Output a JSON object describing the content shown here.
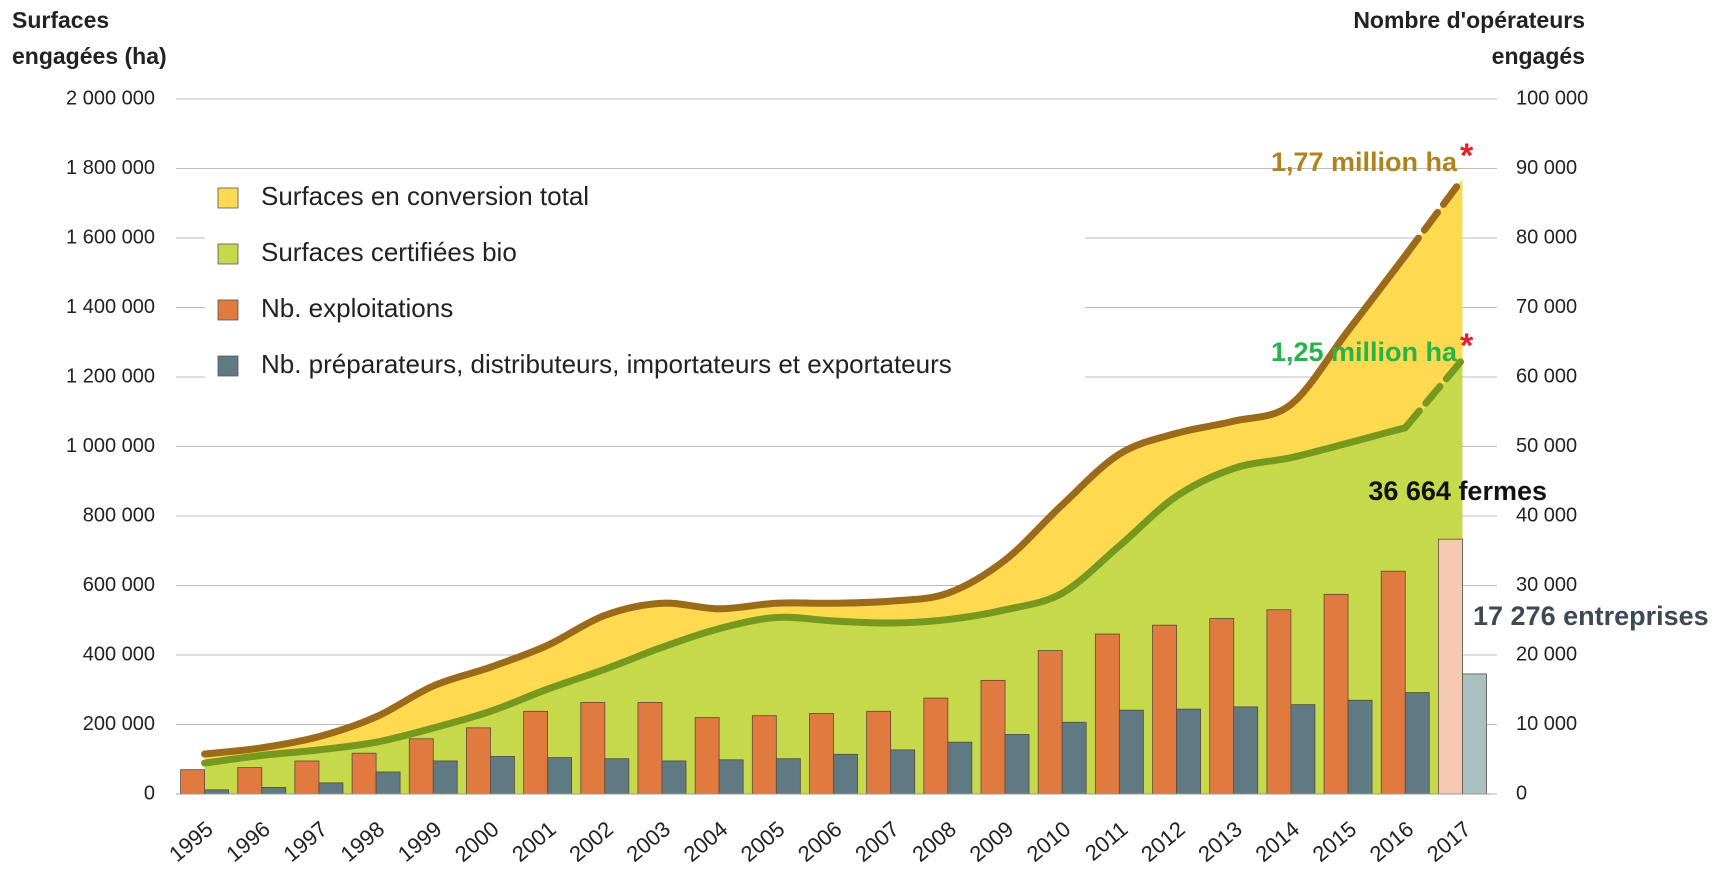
{
  "chart_data": {
    "type": "combo",
    "ylabel": [
      "Surfaces",
      "engagées (ha)"
    ],
    "y2label": [
      "Nombre d'opérateurs",
      "engagés"
    ],
    "categories": [
      "1995",
      "1996",
      "1997",
      "1998",
      "1999",
      "2000",
      "2001",
      "2002",
      "2003",
      "2004",
      "2005",
      "2006",
      "2007",
      "2008",
      "2009",
      "2010",
      "2011",
      "2012",
      "2013",
      "2014",
      "2015",
      "2016",
      "2017"
    ],
    "series": [
      {
        "name": "Surfaces en conversion total",
        "type": "area",
        "color": "#ffd94f",
        "line_color": "#9c6b1a",
        "values": [
          115000,
          133000,
          165000,
          222000,
          311000,
          365000,
          428000,
          514000,
          549000,
          533000,
          549000,
          549000,
          555000,
          578000,
          673000,
          832000,
          978000,
          1038000,
          1073000,
          1121000,
          1333000,
          1549000,
          1770000
        ]
      },
      {
        "name": "Surfaces certifiées bio",
        "type": "area",
        "color": "#c5d94a",
        "line_color": "#76981f",
        "values": [
          89000,
          111000,
          127000,
          149000,
          190000,
          238000,
          302000,
          359000,
          422000,
          476000,
          508000,
          498000,
          492000,
          502000,
          530000,
          578000,
          714000,
          857000,
          937000,
          968000,
          1010000,
          1054000,
          1250000
        ]
      },
      {
        "name": "Nb. exploitations",
        "type": "bar",
        "axis": "y2",
        "color": "#e07a3f",
        "last_color": "#f6cab2",
        "values": [
          3500,
          3800,
          4750,
          5870,
          7940,
          9520,
          11900,
          13170,
          13170,
          11000,
          11270,
          11590,
          11900,
          13800,
          16350,
          20630,
          23020,
          24290,
          25240,
          26510,
          28730,
          32060,
          36664
        ]
      },
      {
        "name": "Nb. préparateurs, distributeurs, importateurs et exportateurs",
        "type": "bar",
        "axis": "y2",
        "color": "#5f7a82",
        "last_color": "#a9c1c0",
        "values": [
          600,
          950,
          1600,
          3170,
          4760,
          5400,
          5240,
          5080,
          4760,
          4920,
          5080,
          5710,
          6350,
          7460,
          8570,
          10320,
          12060,
          12220,
          12540,
          12860,
          13490,
          14600,
          17276
        ]
      }
    ],
    "dash_last": true,
    "ylim": [
      0,
      2000000
    ],
    "yticks": [
      0,
      {
        "value": 200000,
        "label": "200 000"
      },
      {
        "value": 400000,
        "label": "400 000"
      },
      {
        "value": 600000,
        "label": "600 000"
      },
      {
        "value": 800000,
        "label": "800 000"
      },
      {
        "value": 1000000,
        "label": "1 000 000"
      },
      {
        "value": 1200000,
        "label": "1 200 000"
      },
      {
        "value": 1400000,
        "label": "1 400 000"
      },
      {
        "value": 1600000,
        "label": "1 600 000"
      },
      {
        "value": 1800000,
        "label": "1 800 000"
      },
      {
        "value": 2000000,
        "label": "2 000 000"
      }
    ],
    "y2lim": [
      0,
      100000
    ],
    "y2ticks": [
      0,
      {
        "value": 10000,
        "label": "10 000"
      },
      {
        "value": 20000,
        "label": "20 000"
      },
      {
        "value": 30000,
        "label": "30 000"
      },
      {
        "value": 40000,
        "label": "40 000"
      },
      {
        "value": 50000,
        "label": "50 000"
      },
      {
        "value": 60000,
        "label": "60 000"
      },
      {
        "value": 70000,
        "label": "70 000"
      },
      {
        "value": 80000,
        "label": "80 000"
      },
      {
        "value": 90000,
        "label": "90 000"
      },
      {
        "value": 100000,
        "label": "100 000"
      }
    ],
    "grid": true,
    "legend": "upper left",
    "annotations": [
      {
        "text": "1,77 million ha",
        "mark": "*"
      },
      {
        "text": "1,25 million ha",
        "mark": "*"
      },
      {
        "text": "36 664 fermes"
      },
      {
        "text": "17 276 entreprises"
      }
    ]
  }
}
